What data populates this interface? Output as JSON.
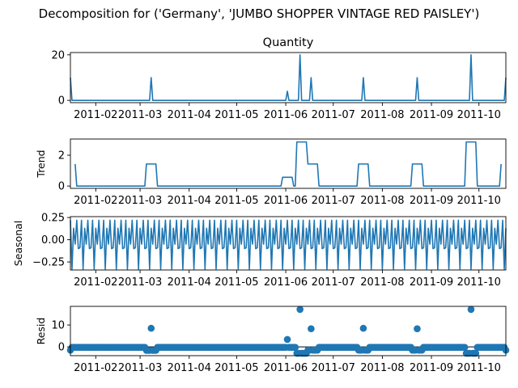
{
  "title": "Decomposition for ('Germany', 'JUMBO SHOPPER VINTAGE RED PAISLEY')",
  "chart_data": [
    {
      "type": "line",
      "title": "Quantity",
      "ylabel": "",
      "xlim": [
        "2011-01-16",
        "2011-10-18"
      ],
      "ylim": [
        -1,
        21
      ],
      "yticks": [
        0,
        20
      ],
      "xticks": [
        "2011-02",
        "2011-03",
        "2011-04",
        "2011-05",
        "2011-06",
        "2011-07",
        "2011-08",
        "2011-09",
        "2011-10"
      ],
      "baseline": 0,
      "spikes": [
        {
          "x": "2011-01-16",
          "y": 10
        },
        {
          "x": "2011-03-08",
          "y": 10
        },
        {
          "x": "2011-06-02",
          "y": 4
        },
        {
          "x": "2011-06-10",
          "y": 20
        },
        {
          "x": "2011-06-17",
          "y": 10
        },
        {
          "x": "2011-07-20",
          "y": 10
        },
        {
          "x": "2011-08-23",
          "y": 10
        },
        {
          "x": "2011-09-26",
          "y": 20
        },
        {
          "x": "2011-10-18",
          "y": 10
        }
      ]
    },
    {
      "type": "line",
      "title": "",
      "ylabel": "Trend",
      "xlim": [
        "2011-01-16",
        "2011-10-18"
      ],
      "ylim": [
        -0.15,
        3.05
      ],
      "yticks": [
        0,
        2
      ],
      "xticks": [
        "2011-02",
        "2011-03",
        "2011-04",
        "2011-05",
        "2011-06",
        "2011-07",
        "2011-08",
        "2011-09",
        "2011-10"
      ],
      "baseline": 0,
      "plateaus": [
        {
          "start": "2011-01-19",
          "end": "2011-01-19",
          "y": 1.43
        },
        {
          "start": "2011-03-05",
          "end": "2011-03-11",
          "y": 1.43
        },
        {
          "start": "2011-05-30",
          "end": "2011-06-05",
          "y": 0.57
        },
        {
          "start": "2011-06-08",
          "end": "2011-06-14",
          "y": 2.86
        },
        {
          "start": "2011-06-15",
          "end": "2011-06-21",
          "y": 1.43
        },
        {
          "start": "2011-07-17",
          "end": "2011-07-23",
          "y": 1.43
        },
        {
          "start": "2011-08-20",
          "end": "2011-08-26",
          "y": 1.43
        },
        {
          "start": "2011-09-23",
          "end": "2011-09-29",
          "y": 2.86
        },
        {
          "start": "2011-10-15",
          "end": "2011-10-15",
          "y": 1.43
        }
      ]
    },
    {
      "type": "line",
      "title": "",
      "ylabel": "Seasonal",
      "xlim": [
        "2011-01-16",
        "2011-10-18"
      ],
      "ylim": [
        -0.34,
        0.26
      ],
      "yticks": [
        0.25,
        0.0,
        -0.25
      ],
      "ytick_labels": [
        "0.25",
        "0.00",
        "−0.25"
      ],
      "xticks": [
        "2011-02",
        "2011-03",
        "2011-04",
        "2011-05",
        "2011-06",
        "2011-07",
        "2011-08",
        "2011-09",
        "2011-10"
      ],
      "period_days": 7,
      "weekly_pattern": [
        0.22,
        -0.33,
        0.13,
        -0.05,
        0.22,
        -0.1,
        -0.09
      ]
    },
    {
      "type": "scatter",
      "title": "",
      "ylabel": "Resid",
      "xlim": [
        "2011-01-16",
        "2011-10-18"
      ],
      "ylim": [
        -4,
        18.5
      ],
      "yticks": [
        0,
        10
      ],
      "xticks": [
        "2011-02",
        "2011-03",
        "2011-04",
        "2011-05",
        "2011-06",
        "2011-07",
        "2011-08",
        "2011-09",
        "2011-10"
      ],
      "baseline": 0,
      "default_resid": -0.2,
      "outliers": [
        {
          "x": "2011-01-16",
          "y": -1.5
        },
        {
          "x": "2011-03-08",
          "y": 8.5
        },
        {
          "x": "2011-06-02",
          "y": 3.4
        },
        {
          "x": "2011-06-10",
          "y": 17.1
        },
        {
          "x": "2011-06-17",
          "y": 8.3
        },
        {
          "x": "2011-07-20",
          "y": 8.5
        },
        {
          "x": "2011-08-23",
          "y": 8.3
        },
        {
          "x": "2011-09-26",
          "y": 17.1
        },
        {
          "x": "2011-10-18",
          "y": -1.5
        }
      ],
      "dip_windows": [
        {
          "start": "2011-03-05",
          "end": "2011-03-11",
          "y": -1.6
        },
        {
          "start": "2011-06-08",
          "end": "2011-06-14",
          "y": -2.9
        },
        {
          "start": "2011-06-15",
          "end": "2011-06-21",
          "y": -1.5
        },
        {
          "start": "2011-07-17",
          "end": "2011-07-23",
          "y": -1.5
        },
        {
          "start": "2011-08-20",
          "end": "2011-08-26",
          "y": -1.5
        },
        {
          "start": "2011-09-23",
          "end": "2011-09-29",
          "y": -2.9
        }
      ]
    }
  ]
}
